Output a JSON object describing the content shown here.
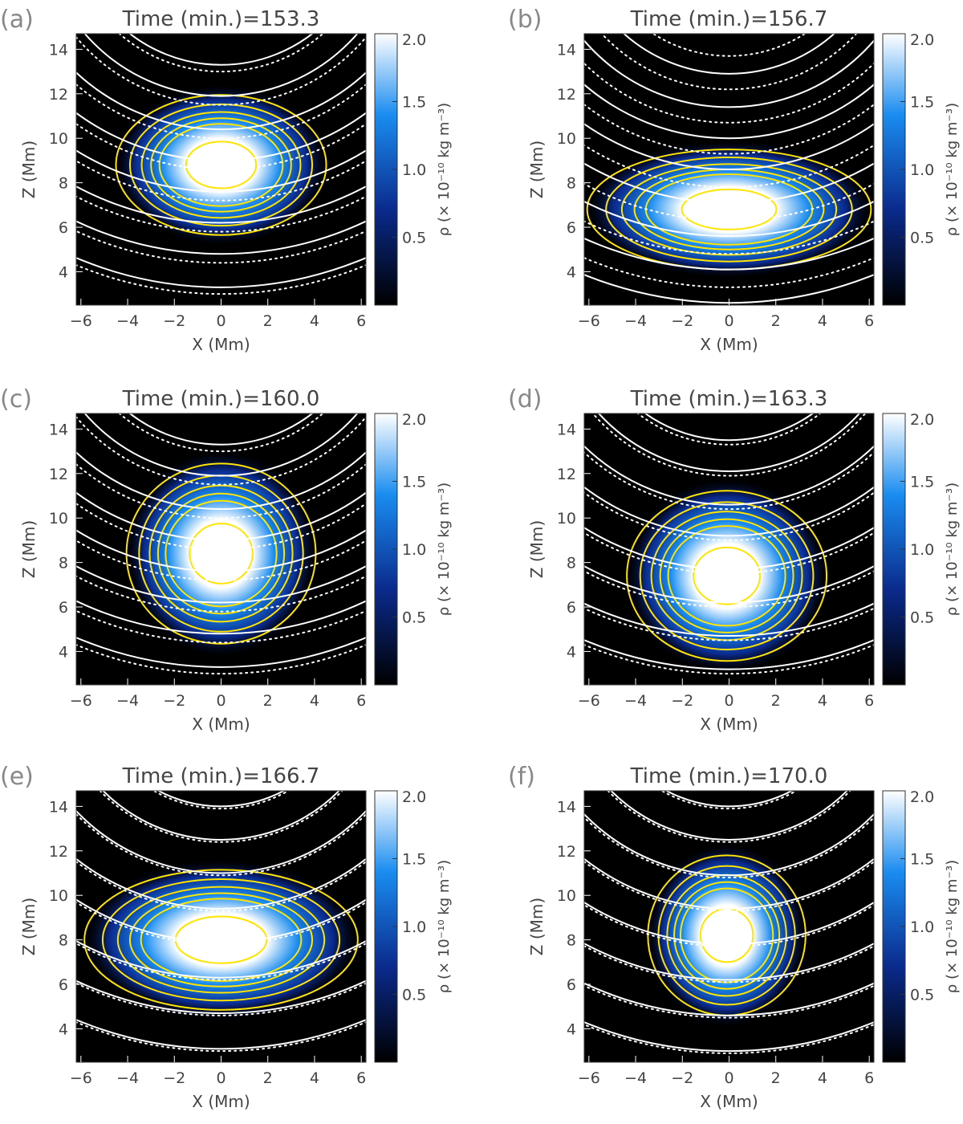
{
  "figure": {
    "colorbar_label": "ρ (× 10⁻¹⁰ kg m⁻³)",
    "colors": {
      "background": "#000000",
      "density_low": "#000000",
      "density_mid_dark": "#0a2a8c",
      "density_mid": "#1a8cf0",
      "density_high": "#ffffff",
      "density_contour": "#ffe400",
      "field_line": "#ffffff",
      "axis": "#333333",
      "label": "#444444",
      "panel_letter": "#888888"
    }
  },
  "chart_data": [
    {
      "panel": "(a)",
      "title": "Time (min.)=153.3",
      "type": "heatmap",
      "xlabel": "X (Mm)",
      "ylabel": "Z (Mm)",
      "xlim": [
        -6.2,
        6.2
      ],
      "ylim": [
        2.5,
        14.7
      ],
      "x_ticks": [
        -6,
        -4,
        -2,
        0,
        2,
        4,
        6
      ],
      "y_ticks": [
        4,
        6,
        8,
        10,
        12,
        14
      ],
      "colorbar": {
        "range": [
          0,
          2.0
        ],
        "ticks": [
          0.5,
          1.0,
          1.5,
          2.0
        ],
        "label": "ρ (× 10⁻¹⁰ kg m⁻³)"
      },
      "blob": {
        "center_x": 0.0,
        "center_z": 8.8,
        "half_width": 2.0,
        "half_height": 1.4,
        "peak_density": 2.6
      },
      "contour_levels": [
        0.2,
        0.4,
        0.6,
        0.8,
        1.0,
        1.9
      ],
      "field_lines": {
        "solid_bottom_z": [
          3.3,
          4.8,
          6.2,
          7.6,
          9.0,
          10.4,
          11.9,
          13.3
        ],
        "dotted_bottom_z": [
          3.0,
          4.4,
          5.8,
          7.2,
          8.6,
          10.0,
          11.5,
          13.0
        ]
      }
    },
    {
      "panel": "(b)",
      "title": "Time (min.)=156.7",
      "type": "heatmap",
      "xlabel": "X (Mm)",
      "ylabel": "Z (Mm)",
      "xlim": [
        -6.2,
        6.2
      ],
      "ylim": [
        2.5,
        14.7
      ],
      "x_ticks": [
        -6,
        -4,
        -2,
        0,
        2,
        4,
        6
      ],
      "y_ticks": [
        4,
        6,
        8,
        10,
        12,
        14
      ],
      "colorbar": {
        "range": [
          0,
          2.0
        ],
        "ticks": [
          0.5,
          1.0,
          1.5,
          2.0
        ],
        "label": "ρ (× 10⁻¹⁰ kg m⁻³)"
      },
      "blob": {
        "center_x": 0.0,
        "center_z": 6.8,
        "half_width": 2.7,
        "half_height": 1.2,
        "peak_density": 2.6
      },
      "contour_levels": [
        0.2,
        0.4,
        0.6,
        0.8,
        1.0,
        1.9
      ],
      "field_lines": {
        "solid_bottom_z": [
          2.6,
          4.1,
          5.6,
          7.1,
          8.6,
          10.0,
          11.4,
          12.9
        ],
        "dotted_bottom_z": [
          3.3,
          4.8,
          6.3,
          7.8,
          9.3,
          10.7,
          12.2,
          13.7
        ]
      }
    },
    {
      "panel": "(c)",
      "title": "Time (min.)=160.0",
      "type": "heatmap",
      "xlabel": "X (Mm)",
      "ylabel": "Z (Mm)",
      "xlim": [
        -6.2,
        6.2
      ],
      "ylim": [
        2.5,
        14.7
      ],
      "x_ticks": [
        -6,
        -4,
        -2,
        0,
        2,
        4,
        6
      ],
      "y_ticks": [
        4,
        6,
        8,
        10,
        12,
        14
      ],
      "colorbar": {
        "range": [
          0,
          2.0
        ],
        "ticks": [
          0.5,
          1.0,
          1.5,
          2.0
        ],
        "label": "ρ (× 10⁻¹⁰ kg m⁻³)"
      },
      "blob": {
        "center_x": 0.0,
        "center_z": 8.4,
        "half_width": 1.8,
        "half_height": 1.8,
        "peak_density": 2.6
      },
      "contour_levels": [
        0.2,
        0.4,
        0.6,
        0.8,
        1.0,
        1.9
      ],
      "field_lines": {
        "solid_bottom_z": [
          3.3,
          4.8,
          6.2,
          7.6,
          9.0,
          10.4,
          11.9,
          13.3
        ],
        "dotted_bottom_z": [
          3.0,
          4.4,
          5.8,
          7.2,
          8.6,
          10.0,
          11.5,
          13.0
        ]
      }
    },
    {
      "panel": "(d)",
      "title": "Time (min.)=163.3",
      "type": "heatmap",
      "xlabel": "X (Mm)",
      "ylabel": "Z (Mm)",
      "xlim": [
        -6.2,
        6.2
      ],
      "ylim": [
        2.5,
        14.7
      ],
      "x_ticks": [
        -6,
        -4,
        -2,
        0,
        2,
        4,
        6
      ],
      "y_ticks": [
        4,
        6,
        8,
        10,
        12,
        14
      ],
      "colorbar": {
        "range": [
          0,
          2.0
        ],
        "ticks": [
          0.5,
          1.0,
          1.5,
          2.0
        ],
        "label": "ρ (× 10⁻¹⁰ kg m⁻³)"
      },
      "blob": {
        "center_x": -0.1,
        "center_z": 7.4,
        "half_width": 1.9,
        "half_height": 1.7,
        "peak_density": 2.6
      },
      "contour_levels": [
        0.2,
        0.4,
        0.6,
        0.8,
        1.0,
        1.9
      ],
      "field_lines": {
        "solid_bottom_z": [
          3.2,
          4.7,
          6.2,
          7.7,
          9.2,
          10.6,
          12.1,
          13.5
        ],
        "dotted_bottom_z": [
          3.0,
          4.5,
          6.0,
          7.5,
          9.0,
          10.4,
          11.9,
          13.3
        ]
      }
    },
    {
      "panel": "(e)",
      "title": "Time (min.)=166.7",
      "type": "heatmap",
      "xlabel": "X (Mm)",
      "ylabel": "Z (Mm)",
      "xlim": [
        -6.2,
        6.2
      ],
      "ylim": [
        2.5,
        14.7
      ],
      "x_ticks": [
        -6,
        -4,
        -2,
        0,
        2,
        4,
        6
      ],
      "y_ticks": [
        4,
        6,
        8,
        10,
        12,
        14
      ],
      "colorbar": {
        "range": [
          0,
          2.0
        ],
        "ticks": [
          0.5,
          1.0,
          1.5,
          2.0
        ],
        "label": "ρ (× 10⁻¹⁰ kg m⁻³)"
      },
      "blob": {
        "center_x": 0.0,
        "center_z": 8.0,
        "half_width": 2.6,
        "half_height": 1.4,
        "peak_density": 2.6
      },
      "contour_levels": [
        0.2,
        0.4,
        0.6,
        0.8,
        1.0,
        1.9
      ],
      "field_lines": {
        "solid_bottom_z": [
          3.1,
          4.7,
          6.3,
          7.9,
          9.4,
          11.0,
          12.5,
          14.0
        ],
        "dotted_bottom_z": [
          3.0,
          4.6,
          6.2,
          7.8,
          9.3,
          10.9,
          12.4,
          13.9
        ]
      }
    },
    {
      "panel": "(f)",
      "title": "Time (min.)=170.0",
      "type": "heatmap",
      "xlabel": "X (Mm)",
      "ylabel": "Z (Mm)",
      "xlim": [
        -6.2,
        6.2
      ],
      "ylim": [
        2.5,
        14.7
      ],
      "x_ticks": [
        -6,
        -4,
        -2,
        0,
        2,
        4,
        6
      ],
      "y_ticks": [
        4,
        6,
        8,
        10,
        12,
        14
      ],
      "colorbar": {
        "range": [
          0,
          2.0
        ],
        "ticks": [
          0.5,
          1.0,
          1.5,
          2.0
        ],
        "label": "ρ (× 10⁻¹⁰ kg m⁻³)"
      },
      "blob": {
        "center_x": -0.1,
        "center_z": 8.2,
        "half_width": 1.5,
        "half_height": 1.6,
        "peak_density": 2.6
      },
      "contour_levels": [
        0.2,
        0.4,
        0.6,
        0.8,
        1.0,
        1.9
      ],
      "field_lines": {
        "solid_bottom_z": [
          3.0,
          4.6,
          6.2,
          7.8,
          9.4,
          10.9,
          12.5,
          14.0
        ],
        "dotted_bottom_z": [
          2.9,
          4.5,
          6.1,
          7.7,
          9.3,
          10.8,
          12.4,
          13.9
        ]
      }
    }
  ]
}
